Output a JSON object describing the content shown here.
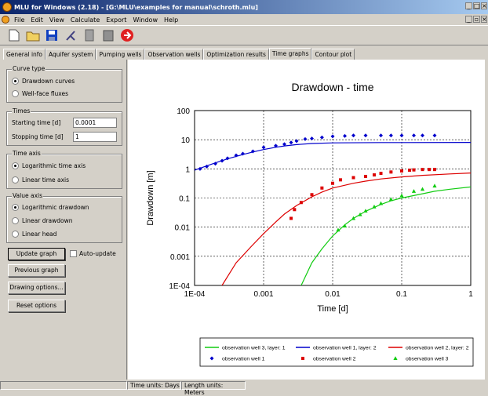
{
  "window": {
    "title": "MLU for Windows (2.18) - [G:\\MLU\\examples for manual\\schroth.mlu]"
  },
  "menu": [
    "File",
    "Edit",
    "View",
    "Calculate",
    "Export",
    "Window",
    "Help"
  ],
  "tabs": [
    "General info",
    "Aquifer system",
    "Pumping wells",
    "Observation wells",
    "Optimization results",
    "Time graphs",
    "Contour plot"
  ],
  "active_tab": "Time graphs",
  "curve_type": {
    "title": "Curve type",
    "options": [
      "Drawdown curves",
      "Well-face fluxes"
    ],
    "selected": 0
  },
  "times": {
    "title": "Times",
    "start_label": "Starting time [d]",
    "start_value": "0.0001",
    "stop_label": "Stopping time [d]",
    "stop_value": "1"
  },
  "time_axis": {
    "title": "Time axis",
    "options": [
      "Logarithmic time axis",
      "Linear time axis"
    ],
    "selected": 0
  },
  "value_axis": {
    "title": "Value axis",
    "options": [
      "Logarithmic drawdown",
      "Linear drawdown",
      "Linear head"
    ],
    "selected": 0
  },
  "buttons": {
    "update": "Update graph",
    "auto_update": "Auto-update",
    "previous": "Previous graph",
    "drawing": "Drawing options...",
    "reset": "Reset options"
  },
  "status": {
    "time_units": "Time units: Days",
    "length_units": "Length units: Meters"
  },
  "chart_data": {
    "type": "scatter",
    "title": "Drawdown - time",
    "xlabel": "Time [d]",
    "ylabel": "Drawdown [m]",
    "xscale": "log",
    "yscale": "log",
    "xlim": [
      0.0001,
      1
    ],
    "ylim": [
      0.0001,
      100
    ],
    "x_ticks": [
      "1E-04",
      "0.001",
      "0.01",
      "0.1",
      "1"
    ],
    "y_ticks": [
      "100",
      "10",
      "1",
      "0.1",
      "0.01",
      "0.001",
      "1E-04"
    ],
    "grid": true,
    "legend_position": "bottom",
    "colors": {
      "blue": "#0000cc",
      "red": "#dd0000",
      "green": "#11cc11"
    },
    "lines": [
      {
        "name": "observation well 3, layer: 1",
        "color": "#11cc11",
        "x": [
          0.0035,
          0.005,
          0.007,
          0.01,
          0.015,
          0.02,
          0.03,
          0.05,
          0.07,
          0.1,
          0.2,
          0.3,
          0.5,
          1
        ],
        "y": [
          0.0001,
          0.0006,
          0.0018,
          0.005,
          0.012,
          0.02,
          0.035,
          0.06,
          0.08,
          0.1,
          0.14,
          0.17,
          0.2,
          0.24
        ]
      },
      {
        "name": "observation well 1, layer: 2",
        "color": "#0000cc",
        "x": [
          0.0001,
          0.0002,
          0.0003,
          0.0005,
          0.0007,
          0.001,
          0.0015,
          0.002,
          0.003,
          0.005,
          0.01,
          0.05,
          0.1,
          1
        ],
        "y": [
          0.9,
          1.6,
          2.2,
          3.1,
          3.8,
          4.6,
          5.5,
          6.1,
          6.8,
          7.4,
          7.8,
          8.0,
          8.0,
          8.1
        ]
      },
      {
        "name": "observation well 2, layer: 2",
        "color": "#dd0000",
        "x": [
          0.00025,
          0.0004,
          0.0007,
          0.001,
          0.0015,
          0.002,
          0.003,
          0.005,
          0.007,
          0.01,
          0.02,
          0.03,
          0.05,
          0.1,
          0.2,
          0.5,
          1
        ],
        "y": [
          0.0001,
          0.0006,
          0.0025,
          0.006,
          0.015,
          0.028,
          0.055,
          0.11,
          0.16,
          0.22,
          0.32,
          0.38,
          0.45,
          0.53,
          0.6,
          0.67,
          0.72
        ]
      }
    ],
    "points": [
      {
        "name": "observation well 1",
        "color": "#0000cc",
        "marker": "diamond",
        "x": [
          0.00012,
          0.00015,
          0.0002,
          0.00025,
          0.0003,
          0.0004,
          0.0005,
          0.0007,
          0.001,
          0.0015,
          0.002,
          0.0025,
          0.003,
          0.004,
          0.005,
          0.007,
          0.01,
          0.015,
          0.02,
          0.03,
          0.05,
          0.07,
          0.1,
          0.15,
          0.2,
          0.3
        ],
        "y": [
          1.0,
          1.2,
          1.5,
          1.9,
          2.3,
          2.9,
          3.3,
          4.0,
          5.5,
          6.2,
          7.0,
          8.0,
          9.0,
          10.5,
          11.0,
          12.0,
          13.0,
          13.5,
          14.0,
          14.0,
          14.0,
          14.0,
          14.0,
          14.0,
          14.0,
          14.0
        ]
      },
      {
        "name": "observation well 2",
        "color": "#dd0000",
        "marker": "square",
        "x": [
          0.0025,
          0.0028,
          0.0035,
          0.005,
          0.007,
          0.01,
          0.013,
          0.02,
          0.03,
          0.04,
          0.05,
          0.07,
          0.1,
          0.13,
          0.15,
          0.2,
          0.25,
          0.3
        ],
        "y": [
          0.02,
          0.04,
          0.07,
          0.13,
          0.22,
          0.32,
          0.42,
          0.5,
          0.55,
          0.62,
          0.7,
          0.78,
          0.85,
          0.9,
          0.92,
          0.95,
          0.95,
          0.95
        ]
      },
      {
        "name": "observation well 3",
        "color": "#11cc11",
        "marker": "triangle",
        "x": [
          0.012,
          0.015,
          0.02,
          0.025,
          0.03,
          0.04,
          0.05,
          0.07,
          0.1,
          0.15,
          0.2,
          0.3
        ],
        "y": [
          0.008,
          0.011,
          0.02,
          0.027,
          0.036,
          0.05,
          0.065,
          0.09,
          0.12,
          0.17,
          0.2,
          0.26
        ]
      }
    ]
  }
}
